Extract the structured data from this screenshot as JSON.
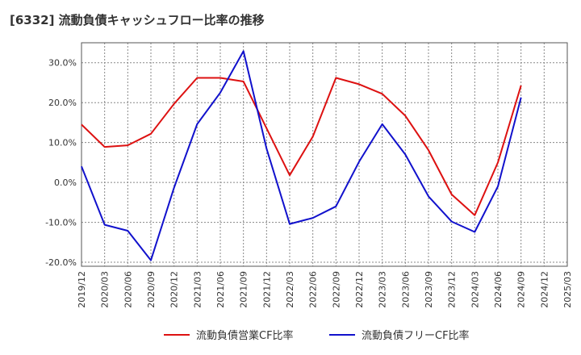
{
  "title": "[6332]  流動負債キャッシュフロー比率の推移",
  "chart_data": {
    "type": "line",
    "title": "[6332]  流動負債キャッシュフロー比率の推移",
    "xlabel": "",
    "ylabel": "",
    "ylim": [
      -21,
      35
    ],
    "y_ticks": [
      {
        "value": 30,
        "label": "30.0%"
      },
      {
        "value": 20,
        "label": "20.0%"
      },
      {
        "value": 10,
        "label": "10.0%"
      },
      {
        "value": 0,
        "label": "0.0%"
      },
      {
        "value": -10,
        "label": "-10.0%"
      },
      {
        "value": -20,
        "label": "-20.0%"
      }
    ],
    "x_ticks": [
      "2019/12",
      "2020/03",
      "2020/06",
      "2020/09",
      "2020/12",
      "2021/03",
      "2021/06",
      "2021/09",
      "2021/12",
      "2022/03",
      "2022/06",
      "2022/09",
      "2022/12",
      "2023/03",
      "2023/06",
      "2023/09",
      "2023/12",
      "2024/03",
      "2024/06",
      "2024/09",
      "2024/12",
      "2025/03"
    ],
    "grid": true,
    "legend_position": "bottom",
    "series": [
      {
        "name": "流動負債営業CF比率",
        "color": "#dd1111",
        "points": [
          [
            "2019/12",
            14.5
          ],
          [
            "2020/03",
            8.9
          ],
          [
            "2020/06",
            9.3
          ],
          [
            "2020/09",
            12.2
          ],
          [
            "2020/12",
            19.7
          ],
          [
            "2021/03",
            26.2
          ],
          [
            "2021/06",
            26.2
          ],
          [
            "2021/09",
            25.3
          ],
          [
            "2021/12",
            13.6
          ],
          [
            "2022/03",
            1.8
          ],
          [
            "2022/06",
            11.5
          ],
          [
            "2022/09",
            26.2
          ],
          [
            "2022/12",
            24.6
          ],
          [
            "2023/03",
            22.2
          ],
          [
            "2023/06",
            16.7
          ],
          [
            "2023/09",
            8.1
          ],
          [
            "2023/12",
            -3.0
          ],
          [
            "2024/03",
            -8.2
          ],
          [
            "2024/06",
            5.0
          ],
          [
            "2024/09",
            24.3
          ]
        ]
      },
      {
        "name": "流動負債フリーCF比率",
        "color": "#1111cc",
        "points": [
          [
            "2019/12",
            4.0
          ],
          [
            "2020/03",
            -10.6
          ],
          [
            "2020/06",
            -12.1
          ],
          [
            "2020/09",
            -19.5
          ],
          [
            "2020/12",
            -1.3
          ],
          [
            "2021/03",
            14.6
          ],
          [
            "2021/06",
            22.5
          ],
          [
            "2021/09",
            32.9
          ],
          [
            "2021/12",
            8.5
          ],
          [
            "2022/03",
            -10.4
          ],
          [
            "2022/06",
            -8.9
          ],
          [
            "2022/09",
            -6.0
          ],
          [
            "2022/12",
            5.2
          ],
          [
            "2023/03",
            14.6
          ],
          [
            "2023/06",
            7.0
          ],
          [
            "2023/09",
            -3.5
          ],
          [
            "2023/12",
            -9.8
          ],
          [
            "2024/03",
            -12.4
          ],
          [
            "2024/06",
            -1.0
          ],
          [
            "2024/09",
            21.3
          ]
        ]
      }
    ]
  }
}
